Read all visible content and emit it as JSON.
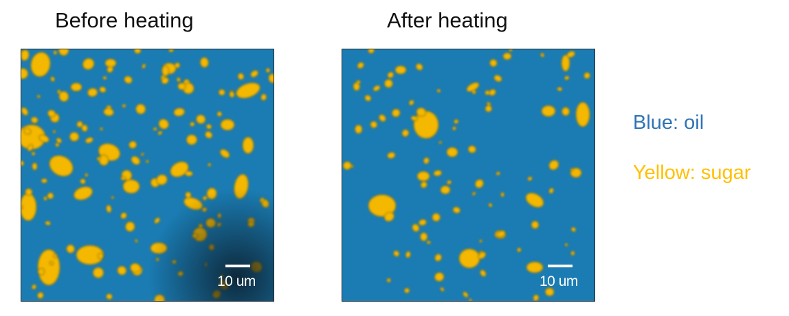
{
  "panels": [
    {
      "title": "Before heating",
      "scale_label": "10 um"
    },
    {
      "title": "After heating",
      "scale_label": "10 um"
    }
  ],
  "legend": [
    {
      "label": "Blue: oil",
      "color": "#2e74b5"
    },
    {
      "label": "Yellow: sugar",
      "color": "#ffc000"
    }
  ],
  "colors": {
    "oil": "#1a7cb3",
    "sugar": "#f5b800"
  }
}
